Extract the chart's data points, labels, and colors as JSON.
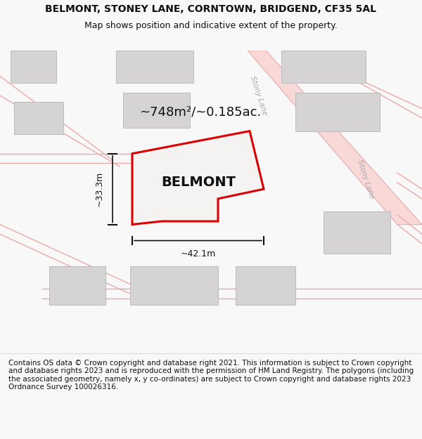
{
  "title": "BELMONT, STONEY LANE, CORNTOWN, BRIDGEND, CF35 5AL",
  "subtitle": "Map shows position and indicative extent of the property.",
  "area_text": "~748m²/~0.185ac.",
  "width_label": "~42.1m",
  "height_label": "~33.3m",
  "property_label": "BELMONT",
  "road_label_top": "Stony Lane",
  "road_label_bottom": "Stony Lane",
  "footer": "Contains OS data © Crown copyright and database right 2021. This information is subject to Crown copyright and database rights 2023 and is reproduced with the permission of HM Land Registry. The polygons (including the associated geometry, namely x, y co-ordinates) are subject to Crown copyright and database rights 2023 Ordnance Survey 100026316.",
  "bg_color": "#f8f8f8",
  "map_bg": "#eeecec",
  "road_fill": "#f9d8d8",
  "road_line": "#e8aaaa",
  "building_fill": "#d5d3d3",
  "building_edge": "#bbbbbb",
  "property_fill": "#f5f2f2",
  "property_edge": "#dd0000",
  "property_edge_width": 2.2,
  "dim_color": "#111111",
  "text_color": "#111111",
  "road_text_color": "#aaaaaa",
  "title_fontsize": 10,
  "subtitle_fontsize": 9,
  "area_fontsize": 13,
  "label_fontsize": 14,
  "dim_fontsize": 9,
  "footer_fontsize": 7.5
}
